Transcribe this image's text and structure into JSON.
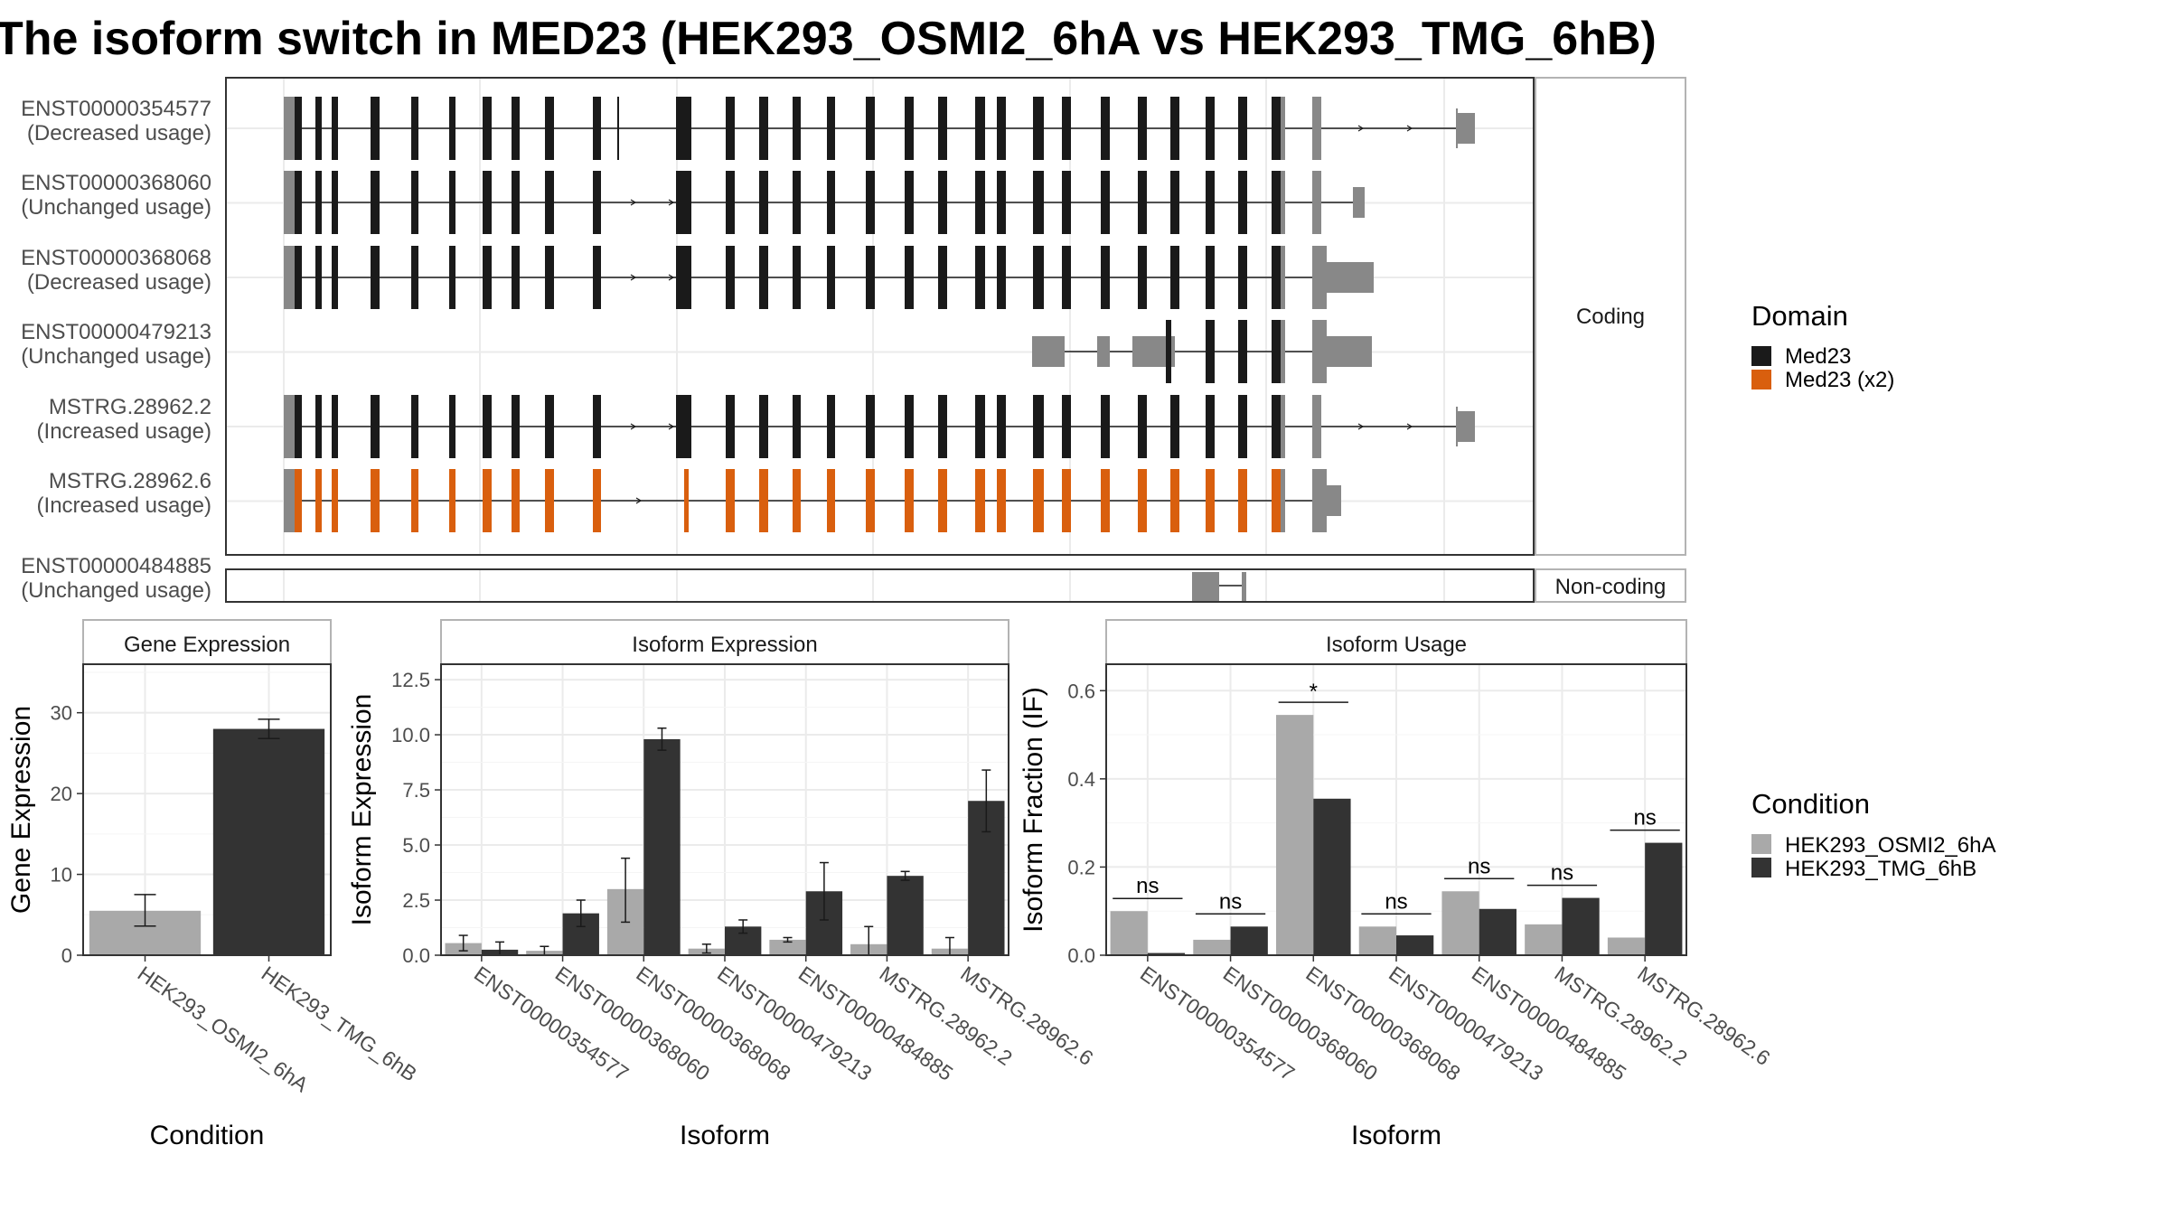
{
  "title": "The isoform switch in MED23 (HEK293_OSMI2_6hA vs HEK293_TMG_6hB)",
  "colors": {
    "domain_med23": "#1a1a1a",
    "domain_med23_x2": "#d95f0e",
    "utr": "#888888",
    "cond_a": "#a9a9a9",
    "cond_b": "#333333",
    "grid": "#ebebeb",
    "panel_border": "#333333",
    "strip_border": "#b3b3b3"
  },
  "transcripts": [
    {
      "id": "ENST00000354577",
      "note": "(Decreased usage)",
      "domain": "Med23"
    },
    {
      "id": "ENST00000368060",
      "note": "(Unchanged usage)",
      "domain": "Med23"
    },
    {
      "id": "ENST00000368068",
      "note": "(Decreased usage)",
      "domain": "Med23"
    },
    {
      "id": "ENST00000479213",
      "note": "(Unchanged usage)",
      "domain": "Med23"
    },
    {
      "id": "MSTRG.28962.2",
      "note": "(Increased usage)",
      "domain": "Med23"
    },
    {
      "id": "MSTRG.28962.6",
      "note": "(Increased usage)",
      "domain": "Med23 (x2)"
    },
    {
      "id": "ENST00000484885",
      "note": "(Unchanged usage)",
      "domain": "none"
    }
  ],
  "strips": {
    "coding": "Coding",
    "noncoding": "Non-coding"
  },
  "legend_domain": {
    "title": "Domain",
    "items": [
      "Med23",
      "Med23 (x2)"
    ]
  },
  "legend_condition": {
    "title": "Condition",
    "items": [
      "HEK293_OSMI2_6hA",
      "HEK293_TMG_6hB"
    ]
  },
  "chart_data": [
    {
      "type": "bar",
      "title": "Gene Expression",
      "xlabel": "Condition",
      "ylabel": "Gene Expression",
      "categories": [
        "HEK293_OSMI2_6hA",
        "HEK293_TMG_6hB"
      ],
      "values": [
        5.5,
        28.0
      ],
      "error_low": [
        3.6,
        26.8
      ],
      "error_high": [
        7.5,
        29.2
      ],
      "ylim": [
        0,
        36
      ],
      "yticks": [
        0,
        10,
        20,
        30
      ]
    },
    {
      "type": "bar",
      "title": "Isoform Expression",
      "xlabel": "Isoform",
      "ylabel": "Isoform Expression",
      "categories": [
        "ENST00000354577",
        "ENST00000368060",
        "ENST00000368068",
        "ENST00000479213",
        "ENST00000484885",
        "MSTRG.28962.2",
        "MSTRG.28962.6"
      ],
      "series": [
        {
          "name": "HEK293_OSMI2_6hA",
          "values": [
            0.55,
            0.2,
            3.0,
            0.3,
            0.7,
            0.5,
            0.3
          ],
          "error_low": [
            0.2,
            0.0,
            1.5,
            0.1,
            0.6,
            0.0,
            0.0
          ],
          "error_high": [
            0.9,
            0.4,
            4.4,
            0.5,
            0.8,
            1.3,
            0.8
          ]
        },
        {
          "name": "HEK293_TMG_6hB",
          "values": [
            0.25,
            1.9,
            9.8,
            1.3,
            2.9,
            3.6,
            7.0
          ],
          "error_low": [
            0.0,
            1.3,
            9.3,
            1.0,
            1.6,
            3.4,
            5.6
          ],
          "error_high": [
            0.6,
            2.5,
            10.3,
            1.6,
            4.2,
            3.8,
            8.4
          ]
        }
      ],
      "ylim": [
        0,
        13.2
      ],
      "yticks": [
        0.0,
        2.5,
        5.0,
        7.5,
        10.0,
        12.5
      ]
    },
    {
      "type": "bar",
      "title": "Isoform Usage",
      "xlabel": "Isoform",
      "ylabel": "Isoform Fraction (IF)",
      "categories": [
        "ENST00000354577",
        "ENST00000368060",
        "ENST00000368068",
        "ENST00000479213",
        "ENST00000484885",
        "MSTRG.28962.2",
        "MSTRG.28962.6"
      ],
      "series": [
        {
          "name": "HEK293_OSMI2_6hA",
          "values": [
            0.1,
            0.035,
            0.545,
            0.065,
            0.145,
            0.07,
            0.04
          ]
        },
        {
          "name": "HEK293_TMG_6hB",
          "values": [
            0.005,
            0.065,
            0.355,
            0.045,
            0.105,
            0.13,
            0.255
          ]
        }
      ],
      "significance": [
        "ns",
        "ns",
        "*",
        "ns",
        "ns",
        "ns",
        "ns"
      ],
      "ylim": [
        0,
        0.66
      ],
      "yticks": [
        0.0,
        0.2,
        0.4,
        0.6
      ]
    }
  ]
}
